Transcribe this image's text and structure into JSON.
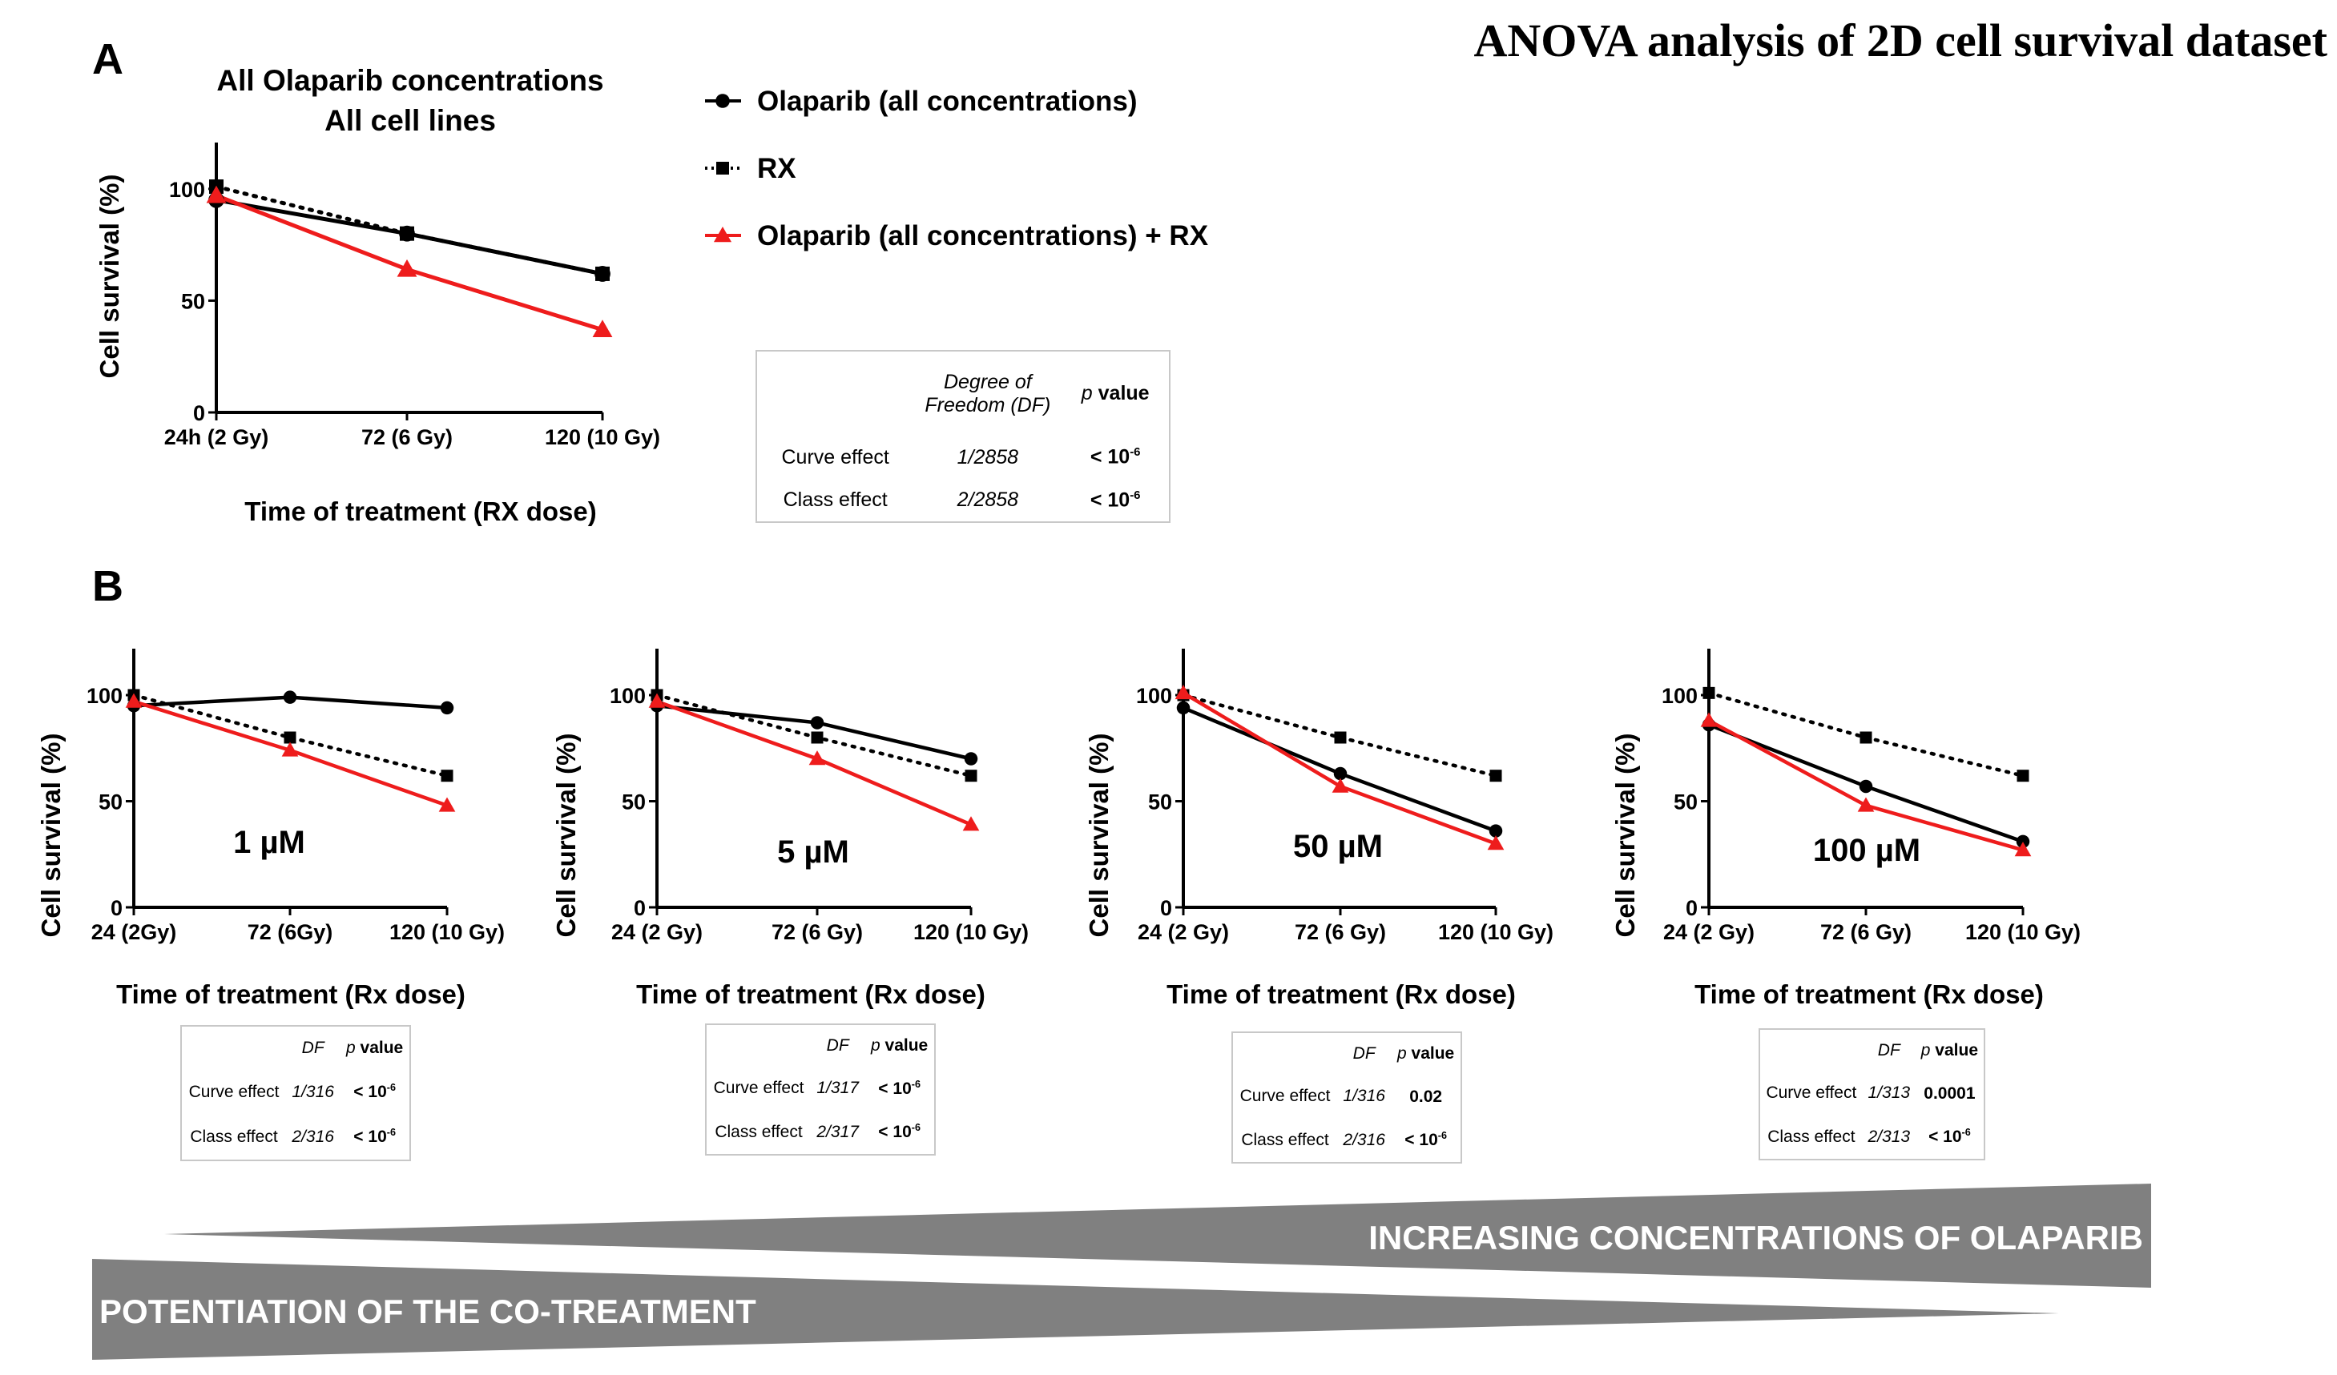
{
  "header": {
    "title": "ANOVA analysis of 2D cell survival dataset"
  },
  "panels": {
    "a": "A",
    "b": "B"
  },
  "legend": [
    {
      "label": "Olaparib (all concentrations)",
      "color": "#000000",
      "marker": "circle",
      "dash": "solid"
    },
    {
      "label": "RX",
      "color": "#000000",
      "marker": "square",
      "dash": "dotted"
    },
    {
      "label": "Olaparib (all concentrations) + RX",
      "color": "#ee1c1c",
      "marker": "triangle",
      "dash": "solid"
    }
  ],
  "chart_data": [
    {
      "type": "line",
      "title": "All Olaparib concentrations\nAll cell lines",
      "title_lines": [
        "All Olaparib concentrations",
        "All cell lines"
      ],
      "label": "",
      "xlabel": "Time of treatment (RX dose)",
      "ylabel": "Cell survival (%)",
      "categories": [
        "24h (2 Gy)",
        "72 (6 Gy)",
        "120 (10 Gy)"
      ],
      "yticks": [
        0,
        50,
        100
      ],
      "ylim": [
        0,
        120
      ],
      "series": [
        {
          "name": "Olaparib (all concentrations)",
          "values": [
            95,
            80,
            62
          ]
        },
        {
          "name": "RX",
          "values": [
            101,
            80,
            62
          ]
        },
        {
          "name": "Olaparib (all concentrations) + RX",
          "values": [
            97,
            64,
            37
          ]
        }
      ]
    },
    {
      "type": "line",
      "label": "1 µM",
      "xlabel": "Time of treatment (Rx dose)",
      "ylabel": "Cell survival (%)",
      "categories": [
        "24 (2Gy)",
        "72 (6Gy)",
        "120 (10 Gy)"
      ],
      "yticks": [
        0,
        50,
        100
      ],
      "ylim": [
        0,
        120
      ],
      "series": [
        {
          "name": "Olaparib (all concentrations)",
          "values": [
            95,
            99,
            94
          ]
        },
        {
          "name": "RX",
          "values": [
            100,
            80,
            62
          ]
        },
        {
          "name": "Olaparib (all concentrations) + RX",
          "values": [
            97,
            74,
            48
          ]
        }
      ]
    },
    {
      "type": "line",
      "label": "5 µM",
      "xlabel": "Time of treatment (Rx dose)",
      "ylabel": "Cell survival (%)",
      "categories": [
        "24 (2 Gy)",
        "72 (6 Gy)",
        "120 (10 Gy)"
      ],
      "yticks": [
        0,
        50,
        100
      ],
      "ylim": [
        0,
        120
      ],
      "series": [
        {
          "name": "Olaparib (all concentrations)",
          "values": [
            95,
            87,
            70
          ]
        },
        {
          "name": "RX",
          "values": [
            100,
            80,
            62
          ]
        },
        {
          "name": "Olaparib (all concentrations) + RX",
          "values": [
            97,
            70,
            39
          ]
        }
      ]
    },
    {
      "type": "line",
      "label": "50 µM",
      "xlabel": "Time of treatment (Rx dose)",
      "ylabel": "Cell survival (%)",
      "categories": [
        "24 (2 Gy)",
        "72 (6 Gy)",
        "120 (10 Gy)"
      ],
      "yticks": [
        0,
        50,
        100
      ],
      "ylim": [
        0,
        120
      ],
      "series": [
        {
          "name": "Olaparib (all concentrations)",
          "values": [
            94,
            63,
            36
          ]
        },
        {
          "name": "RX",
          "values": [
            100,
            80,
            62
          ]
        },
        {
          "name": "Olaparib (all concentrations) + RX",
          "values": [
            101,
            57,
            30
          ]
        }
      ]
    },
    {
      "type": "line",
      "label": "100 µM",
      "xlabel": "Time of treatment (Rx dose)",
      "ylabel": "Cell survival (%)",
      "categories": [
        "24 (2 Gy)",
        "72 (6 Gy)",
        "120 (10 Gy)"
      ],
      "yticks": [
        0,
        50,
        100
      ],
      "ylim": [
        0,
        120
      ],
      "series": [
        {
          "name": "Olaparib (all concentrations)",
          "values": [
            86,
            57,
            31
          ]
        },
        {
          "name": "RX",
          "values": [
            101,
            80,
            62
          ]
        },
        {
          "name": "Olaparib (all concentrations) + RX",
          "values": [
            88,
            48,
            27
          ]
        }
      ]
    }
  ],
  "stats_main": {
    "col_df": "Degree of Freedom (DF)",
    "col_p": "p value",
    "rows": [
      {
        "label": "Curve effect",
        "df": "1/2858",
        "p_base": "< 10",
        "p_exp": "-6"
      },
      {
        "label": "Class effect",
        "df": "2/2858",
        "p_base": "< 10",
        "p_exp": "-6"
      }
    ]
  },
  "stats_small": [
    {
      "col_df": "DF",
      "col_p": "p value",
      "rows": [
        {
          "label": "Curve effect",
          "df": "1/316",
          "p_base": "< 10",
          "p_exp": "-6"
        },
        {
          "label": "Class effect",
          "df": "2/316",
          "p_base": "< 10",
          "p_exp": "-6"
        }
      ]
    },
    {
      "col_df": "DF",
      "col_p": "p value",
      "rows": [
        {
          "label": "Curve effect",
          "df": "1/317",
          "p_base": "< 10",
          "p_exp": "-6"
        },
        {
          "label": "Class effect",
          "df": "2/317",
          "p_base": "< 10",
          "p_exp": "-6"
        }
      ]
    },
    {
      "col_df": "DF",
      "col_p": "p value",
      "rows": [
        {
          "label": "Curve effect",
          "df": "1/316",
          "p_base": "0.02",
          "p_exp": ""
        },
        {
          "label": "Class effect",
          "df": "2/316",
          "p_base": "< 10",
          "p_exp": "-6"
        }
      ]
    },
    {
      "col_df": "DF",
      "col_p": "p value",
      "rows": [
        {
          "label": "Curve effect",
          "df": "1/313",
          "p_base": "0.0001",
          "p_exp": ""
        },
        {
          "label": "Class effect",
          "df": "2/313",
          "p_base": "< 10",
          "p_exp": "-6"
        }
      ]
    }
  ],
  "banners": {
    "increasing": "INCREASING CONCENTRATIONS OF OLAPARIB",
    "potentiation": "POTENTIATION OF THE CO-TREATMENT",
    "color": "#808080"
  }
}
